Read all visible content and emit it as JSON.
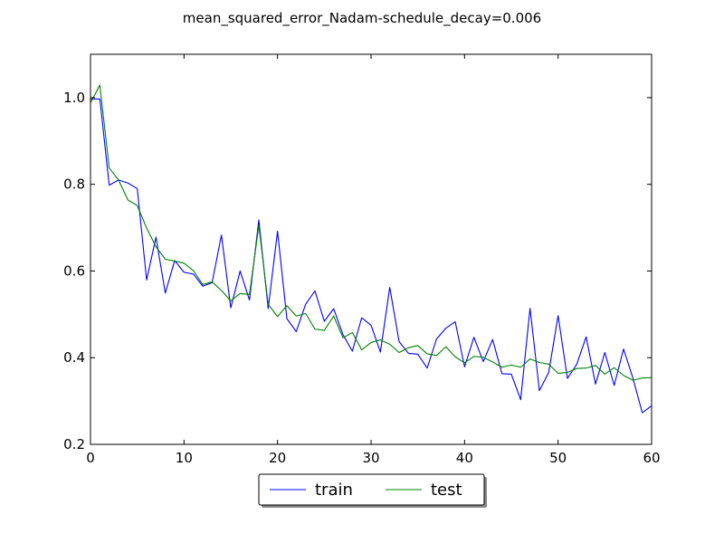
{
  "chart_data": {
    "type": "line",
    "title": "mean_squared_error_Nadam-schedule_decay=0.006",
    "xlabel": "",
    "ylabel": "",
    "xlim": [
      0,
      60
    ],
    "ylim": [
      0.2,
      1.1
    ],
    "xticks": [
      0,
      10,
      20,
      30,
      40,
      50,
      60
    ],
    "xtick_labels": [
      "0",
      "10",
      "20",
      "30",
      "40",
      "50",
      "60"
    ],
    "yticks": [
      0.2,
      0.4,
      0.6,
      0.8,
      1.0
    ],
    "ytick_labels": [
      "0.2",
      "0.4",
      "0.6",
      "0.8",
      "1.0"
    ],
    "grid": false,
    "legend_position": "bottom-center, below axes",
    "x": [
      0,
      1,
      2,
      3,
      4,
      5,
      6,
      7,
      8,
      9,
      10,
      11,
      12,
      13,
      14,
      15,
      16,
      17,
      18,
      19,
      20,
      21,
      22,
      23,
      24,
      25,
      26,
      27,
      28,
      29,
      30,
      31,
      32,
      33,
      34,
      35,
      36,
      37,
      38,
      39,
      40,
      41,
      42,
      43,
      44,
      45,
      46,
      47,
      48,
      49,
      50,
      51,
      52,
      53,
      54,
      55,
      56,
      57,
      58,
      59,
      60
    ],
    "series": [
      {
        "name": "train",
        "color": "#0000ff",
        "values": [
          0.997,
          0.997,
          0.798,
          0.81,
          0.803,
          0.79,
          0.579,
          0.678,
          0.549,
          0.624,
          0.597,
          0.593,
          0.565,
          0.573,
          0.683,
          0.515,
          0.6,
          0.533,
          0.718,
          0.513,
          0.692,
          0.49,
          0.46,
          0.523,
          0.554,
          0.484,
          0.513,
          0.453,
          0.415,
          0.492,
          0.475,
          0.413,
          0.562,
          0.437,
          0.41,
          0.408,
          0.376,
          0.443,
          0.468,
          0.483,
          0.379,
          0.447,
          0.391,
          0.442,
          0.363,
          0.362,
          0.303,
          0.514,
          0.324,
          0.366,
          0.497,
          0.352,
          0.385,
          0.448,
          0.339,
          0.412,
          0.336,
          0.42,
          0.353,
          0.273,
          0.289
        ]
      },
      {
        "name": "test",
        "color": "#008000",
        "values": [
          0.988,
          1.029,
          0.838,
          0.81,
          0.764,
          0.751,
          0.699,
          0.656,
          0.627,
          0.623,
          0.618,
          0.601,
          0.569,
          0.575,
          0.555,
          0.531,
          0.548,
          0.546,
          0.705,
          0.523,
          0.495,
          0.52,
          0.496,
          0.502,
          0.466,
          0.463,
          0.496,
          0.446,
          0.458,
          0.418,
          0.435,
          0.441,
          0.431,
          0.412,
          0.423,
          0.428,
          0.409,
          0.405,
          0.425,
          0.402,
          0.388,
          0.403,
          0.401,
          0.39,
          0.378,
          0.383,
          0.378,
          0.397,
          0.389,
          0.385,
          0.364,
          0.366,
          0.375,
          0.376,
          0.382,
          0.362,
          0.377,
          0.359,
          0.348,
          0.353,
          0.354
        ]
      }
    ]
  }
}
